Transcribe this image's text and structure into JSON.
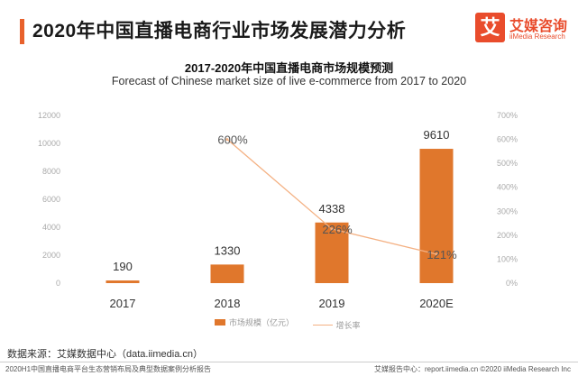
{
  "header": {
    "title": "2020年中国直播电商行业市场发展潜力分析"
  },
  "logo": {
    "glyph": "艾",
    "name_cn": "艾媒咨询",
    "name_en": "iiMedia Research"
  },
  "chart_data": {
    "type": "bar",
    "title": "2017-2020年中国直播电商市场规模预测",
    "subtitle": "Forecast of Chinese market size of live e-commerce from 2017 to 2020",
    "categories": [
      "2017",
      "2018",
      "2019",
      "2020E"
    ],
    "series": [
      {
        "name": "市场规模（亿元）",
        "type": "bar",
        "axis": "left",
        "values": [
          190,
          1330,
          4338,
          9610
        ],
        "labels": [
          "190",
          "1330",
          "4338",
          "9610"
        ]
      },
      {
        "name": "增长率",
        "type": "line",
        "axis": "right",
        "values": [
          null,
          600,
          226,
          121
        ],
        "labels": [
          "",
          "600%",
          "226%",
          "121%"
        ]
      }
    ],
    "y_left": {
      "min": 0,
      "max": 12000,
      "ticks": [
        "0",
        "2000",
        "4000",
        "6000",
        "8000",
        "10000",
        "12000"
      ]
    },
    "y_right": {
      "min": 0,
      "max": 700,
      "ticks": [
        "0%",
        "100%",
        "200%",
        "300%",
        "400%",
        "500%",
        "600%",
        "700%"
      ]
    },
    "colors": {
      "bar": "#e0772c",
      "line": "#f4b183"
    }
  },
  "source": "数据来源：艾媒数据中心（data.iimedia.cn）",
  "footer": {
    "left": "2020H1中国直播电商平台生态营销布局及典型数据案例分析报告",
    "right": "艾媒报告中心：report.iimedia.cn ©2020 iiMedia Research Inc"
  }
}
